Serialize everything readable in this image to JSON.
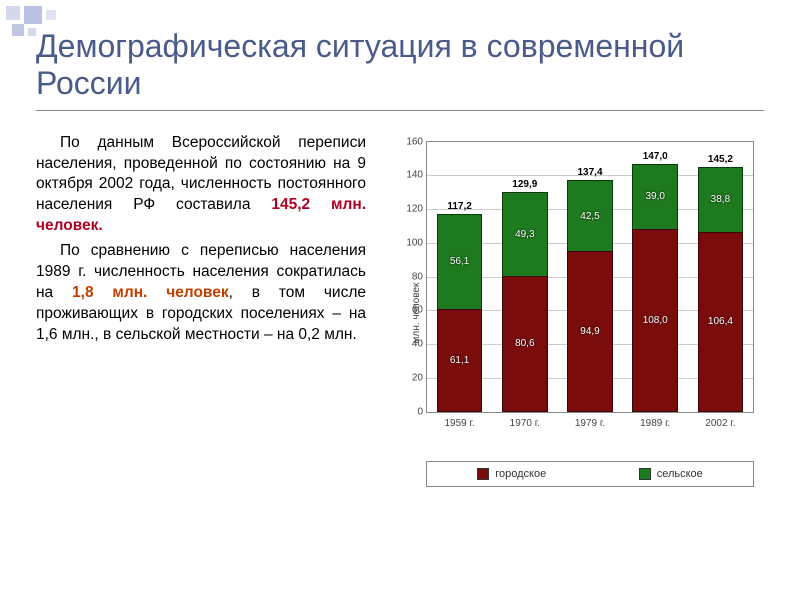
{
  "title": "Демографическая ситуация в современной России",
  "paragraphs": {
    "p1_a": "По данным Всероссийской переписи населения, проведенной по состоянию на 9 октября 2002 года, численность постоянного населения РФ составила ",
    "p1_hl": "145,2 млн. человек.",
    "p2_a": "По сравнению с переписью населения 1989 г. численность населения сократилась на ",
    "p2_hl": "1,8 млн. человек",
    "p2_b": ", в том числе проживающих в городских поселениях – на 1,6 млн., в сельской местности – на 0,2 млн."
  },
  "chart": {
    "type": "stacked-bar",
    "ylabel": "млн. человек",
    "ymax": 160,
    "ytick_step": 20,
    "categories": [
      "1959 г.",
      "1970 г.",
      "1979 г.",
      "1989 г.",
      "2002 г."
    ],
    "totals": [
      "117,2",
      "129,9",
      "137,4",
      "147,0",
      "145,2"
    ],
    "urban": {
      "label": "городское",
      "color": "#7a0c0c",
      "values": [
        61.1,
        80.6,
        94.9,
        108.0,
        106.4
      ],
      "display": [
        "61,1",
        "80,6",
        "94,9",
        "108,0",
        "106,4"
      ]
    },
    "rural": {
      "label": "сельское",
      "color": "#1e7a1e",
      "values": [
        56.1,
        49.3,
        42.5,
        39.0,
        38.8
      ],
      "display": [
        "56,1",
        "49,3",
        "42,5",
        "39,0",
        "38,8"
      ]
    },
    "background_color": "#ffffff",
    "grid_color": "#cccccc",
    "label_fontsize": 10
  }
}
